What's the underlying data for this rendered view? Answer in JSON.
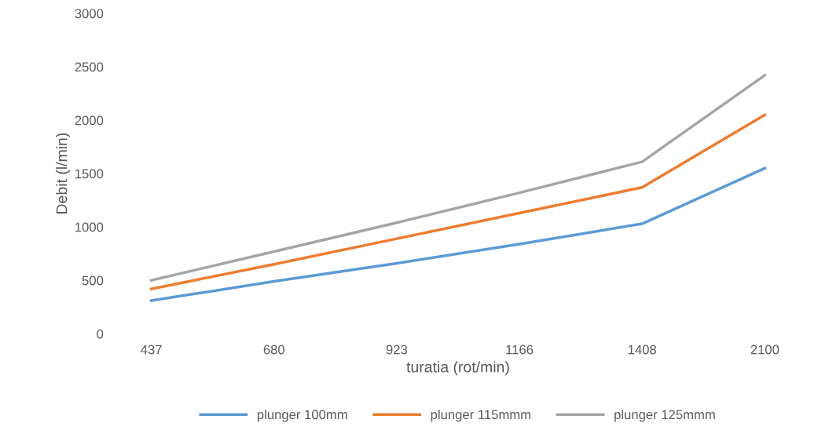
{
  "chart_data": {
    "type": "line",
    "xlabel": "turatia (rot/min)",
    "ylabel": "Debit (l/min)",
    "categories": [
      "437",
      "680",
      "923",
      "1166",
      "1408",
      "2100"
    ],
    "series": [
      {
        "name": "plunger 100mm",
        "color": "#5b9bd5",
        "values": [
          310,
          490,
          660,
          840,
          1030,
          1550
        ]
      },
      {
        "name": "plunger 115mmm",
        "color": "#ed7d31",
        "values": [
          420,
          650,
          890,
          1130,
          1370,
          2050
        ]
      },
      {
        "name": "plunger 125mmm",
        "color": "#a5a5a5",
        "values": [
          500,
          770,
          1040,
          1320,
          1610,
          2420
        ]
      }
    ],
    "ylim": [
      0,
      3000
    ],
    "yticks": [
      0,
      500,
      1000,
      1500,
      2000,
      2500,
      3000
    ],
    "grid": false,
    "legend": "bottom",
    "marker": "none",
    "line_style": "solid"
  }
}
